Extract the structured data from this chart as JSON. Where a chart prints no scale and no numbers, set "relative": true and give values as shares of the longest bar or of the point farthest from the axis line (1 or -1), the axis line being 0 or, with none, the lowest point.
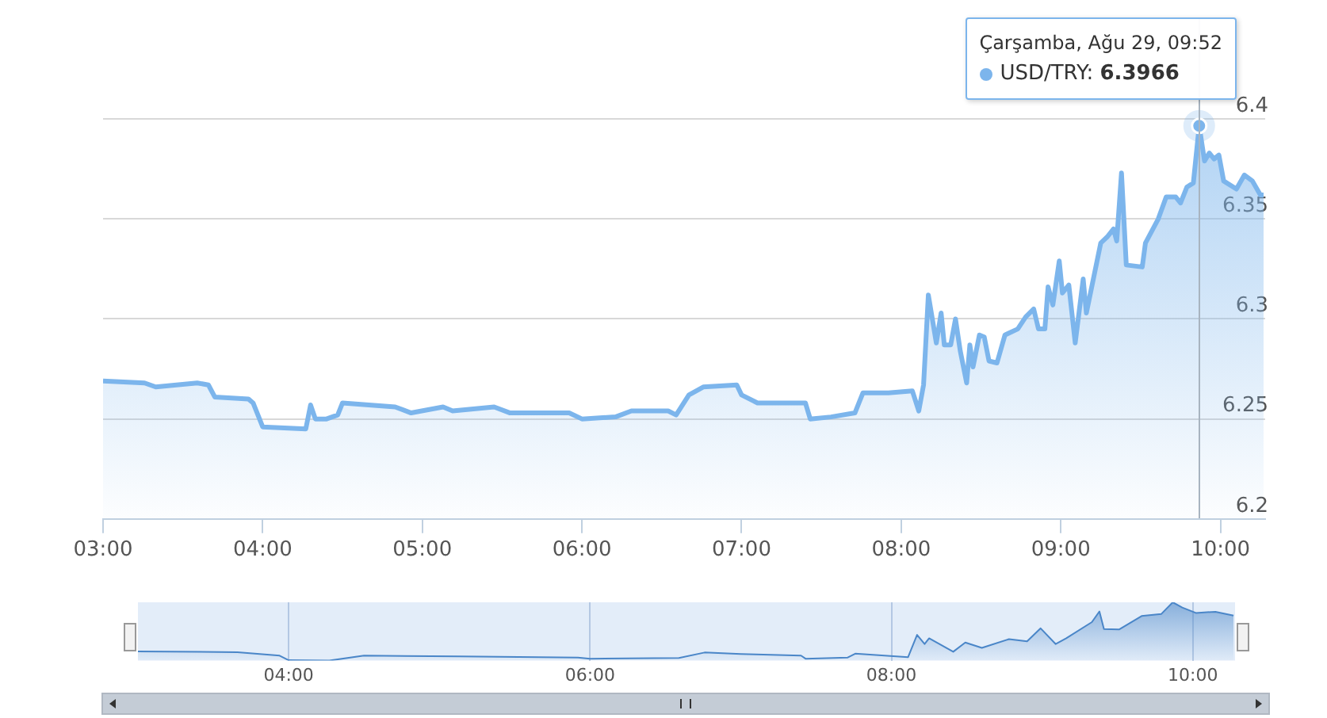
{
  "chart_data": [
    {
      "type": "area",
      "x": [
        3.0,
        3.26,
        3.33,
        3.59,
        3.66,
        3.7,
        3.91,
        3.94,
        4.0,
        4.27,
        4.3,
        4.33,
        4.4,
        4.47,
        4.5,
        4.83,
        4.93,
        5.13,
        5.19,
        5.45,
        5.55,
        5.72,
        5.92,
        6.0,
        6.21,
        6.31,
        6.54,
        6.59,
        6.67,
        6.76,
        6.97,
        7.0,
        7.1,
        7.4,
        7.43,
        7.56,
        7.71,
        7.76,
        7.92,
        8.07,
        8.11,
        8.14,
        8.17,
        8.22,
        8.25,
        8.27,
        8.31,
        8.34,
        8.37,
        8.41,
        8.43,
        8.45,
        8.49,
        8.52,
        8.55,
        8.6,
        8.65,
        8.73,
        8.78,
        8.83,
        8.86,
        8.9,
        8.92,
        8.95,
        8.99,
        9.01,
        9.05,
        9.09,
        9.14,
        9.16,
        9.25,
        9.29,
        9.33,
        9.35,
        9.38,
        9.41,
        9.51,
        9.53,
        9.61,
        9.66,
        9.72,
        9.75,
        9.79,
        9.83,
        9.8667,
        9.9,
        9.93,
        9.96,
        9.99,
        10.02,
        10.1,
        10.15,
        10.2,
        10.25,
        10.27
      ],
      "series": [
        {
          "name": "USD/TRY:",
          "color": "#7cb5ec",
          "values": [
            6.269,
            6.268,
            6.266,
            6.268,
            6.267,
            6.261,
            6.26,
            6.258,
            6.246,
            6.245,
            6.257,
            6.25,
            6.25,
            6.252,
            6.258,
            6.256,
            6.253,
            6.256,
            6.254,
            6.256,
            6.253,
            6.253,
            6.253,
            6.25,
            6.251,
            6.254,
            6.254,
            6.252,
            6.262,
            6.266,
            6.267,
            6.262,
            6.258,
            6.258,
            6.25,
            6.251,
            6.253,
            6.263,
            6.263,
            6.264,
            6.254,
            6.267,
            6.312,
            6.288,
            6.303,
            6.287,
            6.287,
            6.3,
            6.284,
            6.268,
            6.287,
            6.276,
            6.292,
            6.291,
            6.279,
            6.278,
            6.292,
            6.295,
            6.301,
            6.305,
            6.295,
            6.295,
            6.316,
            6.307,
            6.329,
            6.313,
            6.317,
            6.288,
            6.32,
            6.303,
            6.338,
            6.341,
            6.345,
            6.339,
            6.373,
            6.327,
            6.326,
            6.338,
            6.35,
            6.361,
            6.361,
            6.358,
            6.366,
            6.368,
            6.3966,
            6.379,
            6.383,
            6.38,
            6.382,
            6.369,
            6.365,
            6.372,
            6.369,
            6.362,
            6.362
          ],
          "value_labels": [
            null,
            null,
            null,
            null,
            null,
            null,
            null,
            null,
            null,
            null,
            null,
            null,
            null,
            null,
            null,
            null,
            null,
            null,
            null,
            null,
            null,
            null,
            null,
            null,
            null,
            null,
            null,
            null,
            null,
            null,
            null,
            null,
            null,
            null,
            null,
            null,
            null,
            null,
            null,
            null,
            null,
            null,
            null,
            null,
            null,
            null,
            null,
            null,
            null,
            null,
            null,
            null,
            null,
            null,
            null,
            null,
            null,
            null,
            null,
            null,
            null,
            null,
            null,
            null,
            null,
            null,
            null,
            null,
            null,
            null,
            null,
            null,
            null,
            null,
            null,
            null,
            null,
            null,
            null,
            null,
            null,
            null,
            null,
            null,
            "6.3966",
            null,
            null,
            null,
            null,
            null,
            null,
            null,
            null,
            null,
            null
          ]
        }
      ],
      "xlim": [
        3,
        10.28
      ],
      "xticks": [
        {
          "value": 3,
          "label": "03:00"
        },
        {
          "value": 4,
          "label": "04:00"
        },
        {
          "value": 5,
          "label": "05:00"
        },
        {
          "value": 6,
          "label": "06:00"
        },
        {
          "value": 7,
          "label": "07:00"
        },
        {
          "value": 8,
          "label": "08:00"
        },
        {
          "value": 9,
          "label": "09:00"
        },
        {
          "value": 10,
          "label": "10:00"
        }
      ],
      "ylim": [
        6.2,
        6.45
      ],
      "yticks": [
        6.2,
        6.25,
        6.3,
        6.35,
        6.4
      ],
      "grid": "y",
      "legend": "top right",
      "annotations": [
        "Çarşamba, Ağu 29, 09:52"
      ]
    },
    {
      "type": "area",
      "relative": true,
      "x": [
        3.0,
        3.66,
        3.94,
        4.0,
        4.27,
        4.5,
        5.13,
        5.92,
        6.0,
        6.59,
        6.76,
        7.0,
        7.4,
        7.43,
        7.71,
        7.76,
        8.11,
        8.17,
        8.22,
        8.25,
        8.41,
        8.49,
        8.6,
        8.78,
        8.9,
        8.99,
        9.09,
        9.16,
        9.33,
        9.38,
        9.41,
        9.51,
        9.66,
        9.79,
        9.8667,
        9.93,
        10.02,
        10.15,
        10.27
      ],
      "series": [
        {
          "color": "#4a86c8",
          "values": [
            0.157,
            0.145,
            0.086,
            0.007,
            0,
            0.086,
            0.073,
            0.053,
            0.033,
            0.046,
            0.139,
            0.112,
            0.086,
            0.033,
            0.053,
            0.119,
            0.059,
            0.442,
            0.284,
            0.383,
            0.152,
            0.31,
            0.218,
            0.369,
            0.33,
            0.554,
            0.284,
            0.383,
            0.66,
            0.844,
            0.541,
            0.534,
            0.765,
            0.798,
            1,
            0.91,
            0.818,
            0.838,
            0.772
          ]
        }
      ],
      "xlim": [
        3,
        10.28
      ],
      "xticks": [
        {
          "value": 4,
          "label": "04:00"
        },
        {
          "value": 6,
          "label": "06:00"
        },
        {
          "value": 8,
          "label": "08:00"
        },
        {
          "value": 10,
          "label": "10:00"
        }
      ],
      "grid": "x",
      "legend": false,
      "tick_labels": "x"
    }
  ]
}
